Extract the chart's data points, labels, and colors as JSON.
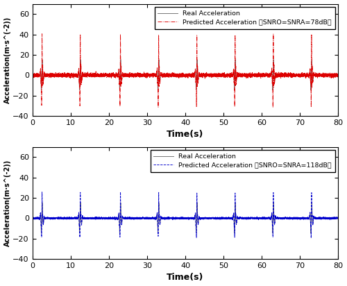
{
  "xlabel": "Time(s)",
  "ylabel1": "Acceleration(m·s^(-2))",
  "ylabel2": "Acceleration(m·s^(-2))",
  "xlim": [
    0,
    80
  ],
  "ylim": [
    -40,
    70
  ],
  "yticks": [
    -40,
    -20,
    0,
    20,
    40,
    60
  ],
  "xticks": [
    0,
    10,
    20,
    30,
    40,
    50,
    60,
    70,
    80
  ],
  "spike_centers": [
    2.5,
    12.5,
    23,
    33,
    43,
    53,
    63,
    73
  ],
  "real_color": "#777777",
  "pred_color_78": "#dd0000",
  "pred_color_118": "#0000cc",
  "legend_real": "Real Acceleration",
  "legend_78": "Predicted Acceleration （SNRO=SNRA=78dB）",
  "legend_118": "Predicted Acceleration （SNRO=SNRA=118dB）",
  "background_color": "#ffffff",
  "figsize": [
    5.0,
    4.12
  ],
  "dpi": 100
}
